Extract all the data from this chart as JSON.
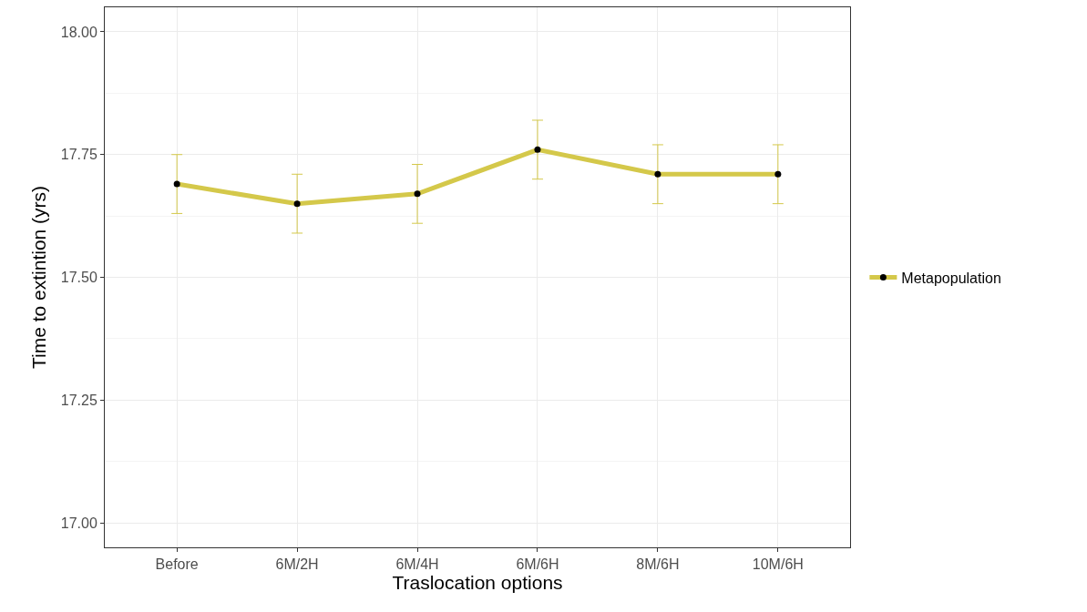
{
  "chart_data": {
    "type": "line",
    "xlabel": "Traslocation options",
    "ylabel": "Time to extintion (yrs)",
    "categories": [
      "Before",
      "6M/2H",
      "6M/4H",
      "6M/6H",
      "8M/6H",
      "10M/6H"
    ],
    "series": [
      {
        "name": "Metapopulation",
        "color": "#d4c84a",
        "values": [
          17.69,
          17.65,
          17.67,
          17.76,
          17.71,
          17.71
        ],
        "errors": [
          0.06,
          0.06,
          0.06,
          0.06,
          0.06,
          0.06
        ]
      }
    ],
    "ylim": [
      16.95,
      18.05
    ],
    "yticks": [
      {
        "value": 17,
        "label": "17.00"
      },
      {
        "value": 17.25,
        "label": "17.25"
      },
      {
        "value": 17.5,
        "label": "17.50"
      },
      {
        "value": 17.75,
        "label": "17.75"
      },
      {
        "value": 18,
        "label": "18.00"
      }
    ],
    "grid": true,
    "legend": "right",
    "marker": "circle",
    "line_style": "solid"
  }
}
